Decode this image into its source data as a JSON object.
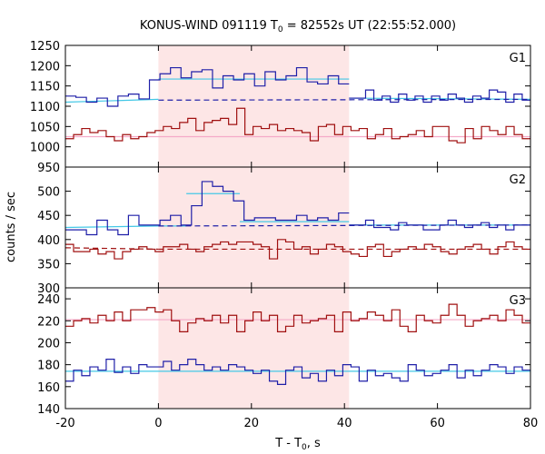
{
  "chart_data": {
    "type": "line",
    "title": {
      "main": "KONUS-WIND 091119 T",
      "sub": "0",
      "rest": " = 82552s UT (22:55:52.000)"
    },
    "xlabel": {
      "main": "T - T",
      "sub": "0",
      "rest": ", s"
    },
    "ylabel": "counts / sec",
    "xlim": [
      -20,
      80
    ],
    "xticks": [
      -20,
      0,
      20,
      40,
      60,
      80
    ],
    "shaded_interval": [
      0,
      41
    ],
    "colors": {
      "blue": "#1f1fa8",
      "red": "#a01010",
      "cyan": "#44c8e6",
      "pink": "#f5aac8",
      "shade": "#fde6e6"
    },
    "panels": [
      {
        "label": "G1",
        "ylim": [
          950,
          1250
        ],
        "yticks": [
          950,
          1000,
          1050,
          1100,
          1150,
          1200,
          1250
        ],
        "series": [
          {
            "color": "blue",
            "edges": [
              -20,
              41
            ],
            "values": [
              1125,
              1122,
              1110,
              1120,
              1100,
              1125,
              1130,
              1118,
              1165,
              1180,
              1195,
              1170,
              1185,
              1190,
              1145,
              1175,
              1165,
              1180,
              1150,
              1185,
              1165,
              1175,
              1195,
              1160,
              1155,
              1175,
              1155
            ]
          },
          {
            "color": "blue",
            "edges": [
              41,
              80
            ],
            "values": [
              1120,
              1120,
              1140,
              1115,
              1125,
              1110,
              1130,
              1115,
              1125,
              1110,
              1125,
              1115,
              1130,
              1120,
              1110,
              1125,
              1120,
              1140,
              1135,
              1110,
              1130,
              1115
            ]
          },
          {
            "color": "red",
            "edges": [
              -20,
              80
            ],
            "values": [
              1020,
              1030,
              1045,
              1035,
              1040,
              1025,
              1015,
              1030,
              1020,
              1025,
              1035,
              1040,
              1050,
              1045,
              1060,
              1070,
              1040,
              1060,
              1065,
              1070,
              1055,
              1095,
              1030,
              1050,
              1045,
              1055,
              1040,
              1045,
              1040,
              1035,
              1015,
              1050,
              1055,
              1030,
              1050,
              1040,
              1045,
              1020,
              1030,
              1045,
              1020,
              1025,
              1030,
              1040,
              1025,
              1050,
              1050,
              1015,
              1010,
              1045,
              1020,
              1050,
              1040,
              1030,
              1050,
              1030,
              1020
            ]
          }
        ],
        "fits": [
          {
            "color": "cyan",
            "points": [
              [
                -20,
                1110
              ],
              [
                0,
                1117
              ]
            ]
          },
          {
            "color": "cyan",
            "points": [
              [
                0,
                1167
              ],
              [
                41,
                1167
              ]
            ]
          },
          {
            "color": "cyan",
            "points": [
              [
                41,
                1120
              ],
              [
                80,
                1117
              ]
            ]
          },
          {
            "color": "blue",
            "dashed": true,
            "points": [
              [
                0,
                1115
              ],
              [
                80,
                1117
              ]
            ]
          },
          {
            "color": "pink",
            "points": [
              [
                -20,
                1025
              ],
              [
                80,
                1025
              ]
            ]
          }
        ]
      },
      {
        "label": "G2",
        "ylim": [
          300,
          550
        ],
        "yticks": [
          300,
          350,
          400,
          450,
          500
        ],
        "series": [
          {
            "color": "blue",
            "edges": [
              -20,
              41
            ],
            "values": [
              420,
              420,
              410,
              440,
              420,
              410,
              450,
              430,
              430,
              440,
              450,
              430,
              470,
              520,
              510,
              500,
              480,
              440,
              445,
              445,
              440,
              440,
              450,
              440,
              445,
              440,
              455
            ]
          },
          {
            "color": "blue",
            "edges": [
              41,
              80
            ],
            "values": [
              430,
              430,
              440,
              425,
              425,
              420,
              435,
              430,
              430,
              420,
              420,
              430,
              440,
              430,
              425,
              430,
              435,
              425,
              430,
              420,
              430,
              430
            ]
          },
          {
            "color": "red",
            "edges": [
              -20,
              80
            ],
            "values": [
              390,
              375,
              375,
              380,
              370,
              375,
              360,
              375,
              380,
              385,
              380,
              375,
              385,
              385,
              390,
              380,
              375,
              385,
              390,
              395,
              390,
              395,
              395,
              390,
              385,
              360,
              400,
              395,
              380,
              385,
              370,
              380,
              390,
              385,
              375,
              370,
              365,
              385,
              390,
              365,
              375,
              380,
              385,
              380,
              390,
              385,
              375,
              370,
              380,
              385,
              390,
              380,
              370,
              385,
              395,
              385,
              380
            ]
          }
        ],
        "fits": [
          {
            "color": "cyan",
            "points": [
              [
                -20,
                425
              ],
              [
                0,
                428
              ]
            ]
          },
          {
            "color": "cyan",
            "points": [
              [
                0,
                428
              ],
              [
                6,
                428
              ]
            ]
          },
          {
            "color": "cyan",
            "points": [
              [
                6,
                495
              ],
              [
                17.5,
                495
              ]
            ]
          },
          {
            "color": "cyan",
            "points": [
              [
                17.5,
                437
              ],
              [
                41,
                437
              ]
            ]
          },
          {
            "color": "cyan",
            "points": [
              [
                41,
                430
              ],
              [
                80,
                430
              ]
            ]
          },
          {
            "color": "blue",
            "dashed": true,
            "points": [
              [
                0,
                428
              ],
              [
                80,
                430
              ]
            ]
          },
          {
            "color": "red",
            "dashed": true,
            "points": [
              [
                -20,
                383
              ],
              [
                0,
                380
              ]
            ]
          },
          {
            "color": "red",
            "dashed": true,
            "points": [
              [
                0,
                380
              ],
              [
                80,
                380
              ]
            ]
          }
        ]
      },
      {
        "label": "G3",
        "ylim": [
          140,
          250
        ],
        "yticks": [
          140,
          160,
          180,
          200,
          220,
          240
        ],
        "series": [
          {
            "color": "blue",
            "edges": [
              -20,
              80
            ],
            "values": [
              165,
              175,
              170,
              178,
              175,
              185,
              173,
              178,
              172,
              180,
              178,
              178,
              183,
              175,
              180,
              185,
              180,
              175,
              178,
              175,
              180,
              178,
              175,
              172,
              175,
              165,
              162,
              175,
              178,
              168,
              172,
              165,
              175,
              170,
              180,
              178,
              165,
              175,
              170,
              172,
              168,
              165,
              180,
              175,
              170,
              172,
              175,
              180,
              168,
              175,
              170,
              175,
              180,
              178,
              172,
              178,
              175
            ]
          },
          {
            "color": "red",
            "edges": [
              -20,
              80
            ],
            "values": [
              215,
              220,
              222,
              218,
              225,
              220,
              228,
              220,
              230,
              230,
              232,
              228,
              230,
              220,
              210,
              218,
              222,
              220,
              225,
              218,
              225,
              210,
              220,
              228,
              220,
              225,
              210,
              215,
              225,
              218,
              220,
              222,
              225,
              210,
              228,
              220,
              222,
              228,
              225,
              220,
              230,
              215,
              210,
              225,
              220,
              218,
              225,
              235,
              225,
              215,
              220,
              222,
              225,
              220,
              230,
              225,
              218
            ]
          }
        ],
        "fits": [
          {
            "color": "cyan",
            "points": [
              [
                -20,
                174
              ],
              [
                80,
                174
              ]
            ]
          },
          {
            "color": "pink",
            "points": [
              [
                -20,
                221
              ],
              [
                80,
                221
              ]
            ]
          }
        ]
      }
    ]
  }
}
